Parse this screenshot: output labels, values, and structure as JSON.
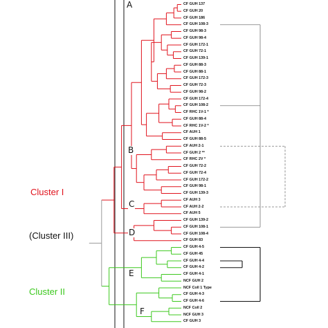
{
  "clusters": {
    "cluster1": {
      "label": "Cluster I",
      "color": "#e0121c"
    },
    "cluster3": {
      "label": "(Cluster III)",
      "color": "#111111"
    },
    "cluster2": {
      "label": "Cluster II",
      "color": "#3cc81e"
    }
  },
  "clades": [
    "A",
    "B",
    "C",
    "D",
    "E",
    "F"
  ],
  "colors": {
    "red": "#e0121c",
    "green": "#3cc81e",
    "grey": "#9a9a9a",
    "black": "#111111",
    "bracket": "#777777"
  },
  "leaves": [
    "CF GUH 137",
    "CF GUH 20",
    "CF GUH 186",
    "CF GUH 108-3",
    "CF GUH 98-3",
    "CF GUH 98-4",
    "CF GUH 172-1",
    "CF GUH 72-1",
    "CF GUH 139-1",
    "CF GUH 88-3",
    "CF GUH 88-1",
    "CF GUH 172-3",
    "CF GUH 72-3",
    "CF GUH 98-2",
    "CF GUH 172-4",
    "CF GUH 108-2",
    "CF RHC 1V-1 *",
    "CF GUH 88-4",
    "CF RHC 1V-2 *",
    "CF AUH 1",
    "CF GUH 88-5",
    "CF AUH 2-1",
    "CF GUH 2 **",
    "CF RHC 2V *",
    "CF GUH 72-2",
    "CF GUH 72-4",
    "CF GUH 172-2",
    "CF GUH 98-1",
    "CF GUH 139-3",
    "CF AUH 3",
    "CF AUH 2-2",
    "CF AUH 5",
    "CF GUH 139-2",
    "CF GUH 108-1",
    "CF GUH 108-4",
    "CF GUH 83",
    "CF GUH 4-5",
    "CF GUH 45",
    "CF GUH 4-4",
    "CF GUH 4-2",
    "CF GUH 4-1",
    "NCF GUH 2",
    "NCF Coll 1 Type",
    "CF GUH 4-3",
    "CF GUH 4-6",
    "NCF Coll 2",
    "NCF GUH 3",
    "CF GUH 3"
  ]
}
